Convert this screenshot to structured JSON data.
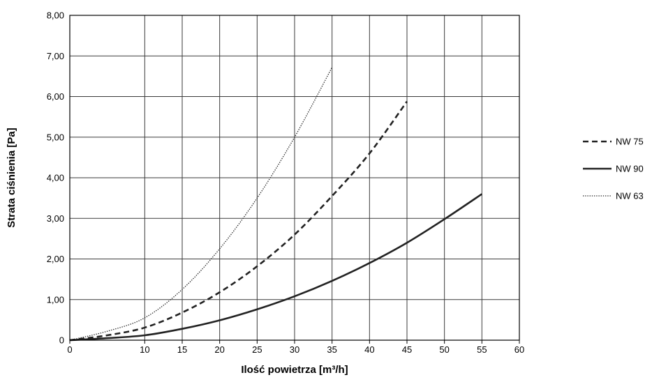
{
  "chart_data": {
    "type": "line",
    "title": "",
    "xlabel": "Ilość powietrza [m³/h]",
    "ylabel": "Strata ciśnienia [Pa]",
    "xlim": [
      0,
      60
    ],
    "ylim": [
      0,
      8
    ],
    "x_ticks": [
      "0",
      "10",
      "15",
      "20",
      "25",
      "30",
      "35",
      "40",
      "45",
      "50",
      "55",
      "60"
    ],
    "y_ticks": [
      "0",
      "1,00",
      "2,00",
      "3,00",
      "4,00",
      "5,00",
      "6,00",
      "7,00",
      "8,00"
    ],
    "grid": true,
    "legend_position": "right",
    "series": [
      {
        "name": "NW 75",
        "line_style": "dashed",
        "color": "#222222",
        "points": [
          [
            0,
            0
          ],
          [
            5,
            0.12
          ],
          [
            10,
            0.31
          ],
          [
            15,
            0.68
          ],
          [
            20,
            1.18
          ],
          [
            25,
            1.82
          ],
          [
            30,
            2.6
          ],
          [
            35,
            3.55
          ],
          [
            40,
            4.6
          ],
          [
            45,
            5.88
          ]
        ]
      },
      {
        "name": "NW 90",
        "line_style": "solid",
        "color": "#222222",
        "points": [
          [
            0,
            0
          ],
          [
            5,
            0.05
          ],
          [
            10,
            0.12
          ],
          [
            15,
            0.28
          ],
          [
            20,
            0.49
          ],
          [
            25,
            0.76
          ],
          [
            30,
            1.08
          ],
          [
            35,
            1.46
          ],
          [
            40,
            1.9
          ],
          [
            45,
            2.4
          ],
          [
            50,
            2.98
          ],
          [
            55,
            3.6
          ]
        ]
      },
      {
        "name": "NW 63",
        "line_style": "dotted",
        "color": "#222222",
        "points": [
          [
            0,
            0
          ],
          [
            5,
            0.22
          ],
          [
            10,
            0.55
          ],
          [
            15,
            1.25
          ],
          [
            20,
            2.25
          ],
          [
            25,
            3.5
          ],
          [
            30,
            5.0
          ],
          [
            35,
            6.72
          ]
        ]
      }
    ]
  }
}
